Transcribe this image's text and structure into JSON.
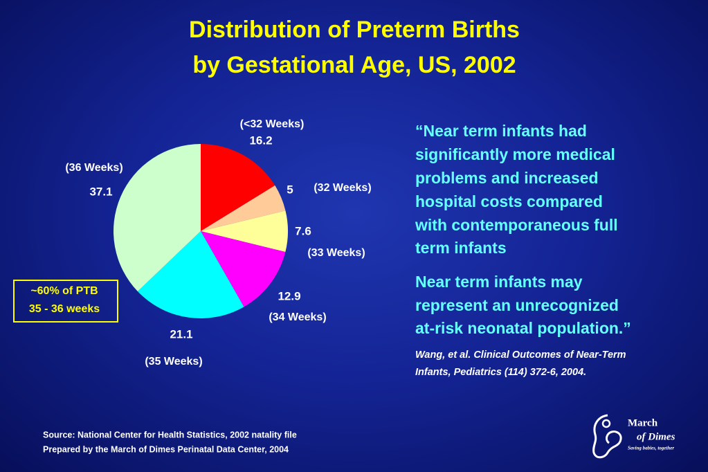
{
  "chart_data": {
    "type": "pie",
    "title": [
      "Distribution of Preterm Births",
      "by Gestational Age, US, 2002"
    ],
    "categories": [
      "(<32 Weeks)",
      "(32 Weeks)",
      "(33 Weeks)",
      "(34 Weeks)",
      "(35 Weeks)",
      "(36 Weeks)"
    ],
    "values": [
      16.2,
      5,
      7.6,
      12.9,
      21.1,
      37.1
    ],
    "colors": [
      "#ff0000",
      "#ffcc99",
      "#ffff99",
      "#ff00ff",
      "#00ffff",
      "#ccffcc"
    ],
    "annotation": [
      "~60% of PTB",
      "35 - 36 weeks"
    ]
  },
  "quote": [
    [
      "“Near term infants had",
      "significantly more medical",
      "problems and increased",
      "hospital costs compared",
      "with contemporaneous full",
      "term infants"
    ],
    [
      "Near term infants may",
      "represent an unrecognized",
      "at-risk neonatal population.”"
    ]
  ],
  "citation": [
    "Wang, et al.  Clinical Outcomes of Near-Term",
    "Infants, Pediatrics (114) 372-6, 2004."
  ],
  "source": [
    "Source: National Center for Health Statistics, 2002 natality file",
    "Prepared by the March of Dimes Perinatal Data Center, 2004"
  ],
  "logo": [
    "March",
    "of Dimes",
    "Saving babies, together"
  ]
}
